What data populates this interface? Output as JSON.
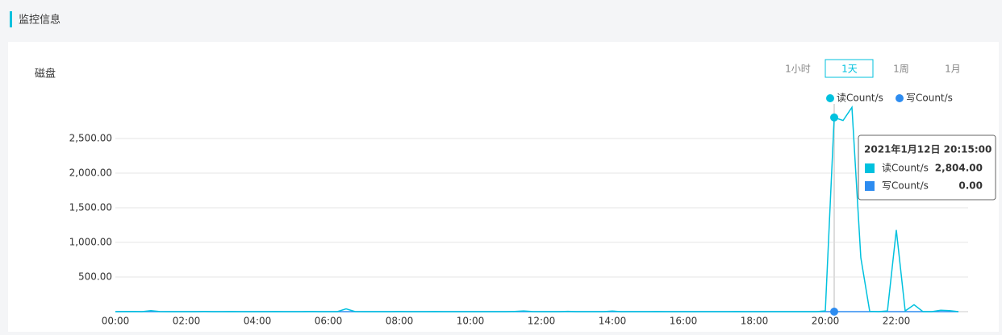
{
  "header": {
    "title": "监控信息"
  },
  "panel": {
    "title": "磁盘",
    "ranges": [
      "1小时",
      "1天",
      "1周",
      "1月"
    ],
    "selected_range": 1
  },
  "chart_data": {
    "type": "line",
    "categories": [
      "00:00",
      "00:15",
      "00:30",
      "00:45",
      "01:00",
      "01:15",
      "01:30",
      "01:45",
      "02:00",
      "02:15",
      "02:30",
      "02:45",
      "03:00",
      "03:15",
      "03:30",
      "03:45",
      "04:00",
      "04:15",
      "04:30",
      "04:45",
      "05:00",
      "05:15",
      "05:30",
      "05:45",
      "06:00",
      "06:15",
      "06:30",
      "06:45",
      "07:00",
      "07:15",
      "07:30",
      "07:45",
      "08:00",
      "08:15",
      "08:30",
      "08:45",
      "09:00",
      "09:15",
      "09:30",
      "09:45",
      "10:00",
      "10:15",
      "10:30",
      "10:45",
      "11:00",
      "11:15",
      "11:30",
      "11:45",
      "12:00",
      "12:15",
      "12:30",
      "12:45",
      "13:00",
      "13:15",
      "13:30",
      "13:45",
      "14:00",
      "14:15",
      "14:30",
      "14:45",
      "15:00",
      "15:15",
      "15:30",
      "15:45",
      "16:00",
      "16:15",
      "16:30",
      "16:45",
      "17:00",
      "17:15",
      "17:30",
      "17:45",
      "18:00",
      "18:15",
      "18:30",
      "18:45",
      "19:00",
      "19:15",
      "19:30",
      "19:45",
      "20:00",
      "20:15",
      "20:30",
      "20:45",
      "21:00",
      "21:15",
      "21:30",
      "21:45",
      "22:00",
      "22:15",
      "22:30",
      "22:45",
      "23:00",
      "23:15",
      "23:30",
      "23:45"
    ],
    "xtick_every": 8,
    "series": [
      {
        "name": "读Count/s",
        "color": "#00c1de",
        "values": [
          0,
          2,
          3,
          0,
          15,
          2,
          0,
          0,
          0,
          0,
          3,
          0,
          0,
          2,
          0,
          0,
          0,
          0,
          2,
          0,
          0,
          0,
          3,
          0,
          0,
          0,
          40,
          2,
          0,
          0,
          0,
          0,
          3,
          0,
          0,
          0,
          2,
          0,
          0,
          0,
          0,
          0,
          0,
          0,
          0,
          3,
          10,
          2,
          0,
          0,
          0,
          4,
          0,
          0,
          0,
          0,
          8,
          0,
          0,
          0,
          0,
          2,
          0,
          0,
          0,
          0,
          0,
          0,
          0,
          0,
          2,
          0,
          0,
          0,
          0,
          0,
          0,
          0,
          0,
          0,
          10,
          2804,
          2760,
          2950,
          780,
          5,
          0,
          10,
          1180,
          10,
          100,
          0,
          0,
          20,
          15,
          0
        ]
      },
      {
        "name": "写Count/s",
        "color": "#2d8cf0",
        "values": [
          0,
          0,
          0,
          0,
          0,
          0,
          0,
          0,
          0,
          0,
          0,
          0,
          0,
          0,
          0,
          0,
          0,
          0,
          0,
          0,
          0,
          0,
          0,
          0,
          0,
          0,
          0,
          0,
          0,
          0,
          0,
          0,
          0,
          0,
          0,
          0,
          0,
          0,
          0,
          0,
          0,
          0,
          0,
          0,
          0,
          0,
          0,
          0,
          0,
          0,
          0,
          0,
          0,
          0,
          0,
          0,
          0,
          0,
          0,
          0,
          0,
          0,
          0,
          0,
          0,
          0,
          0,
          0,
          0,
          0,
          0,
          0,
          0,
          0,
          0,
          0,
          0,
          0,
          0,
          0,
          0,
          0,
          0,
          0,
          0,
          0,
          0,
          0,
          0,
          0,
          0,
          0,
          0,
          0,
          0,
          0
        ]
      }
    ],
    "ylim": [
      0,
      3000
    ],
    "yticks": [
      {
        "value": 500,
        "label": "500.00"
      },
      {
        "value": 1000,
        "label": "1,000.00"
      },
      {
        "value": 1500,
        "label": "1,500.00"
      },
      {
        "value": 2000,
        "label": "2,000.00"
      },
      {
        "value": 2500,
        "label": "2,500.00"
      }
    ],
    "grid": true,
    "tooltip": {
      "index": 81,
      "title": "2021年1月12日 20:15:00",
      "labels": [
        "2,804.00",
        "0.00"
      ]
    }
  }
}
